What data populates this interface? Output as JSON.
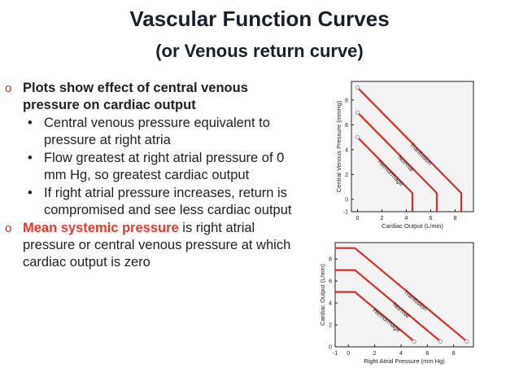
{
  "slide": {
    "title": "Vascular Function Curves",
    "subtitle": "(or Venous return curve)"
  },
  "bullets": {
    "b1": "Plots show effect of central venous pressure on cardiac output",
    "b1a": "Central venous pressure equivalent to pressure at right atria",
    "b1b": "Flow greatest at right atrial pressure of 0 mm Hg, so greatest cardiac output",
    "b1c": "If right atrial pressure increases, return is compromised and see less cardiac output",
    "b2_highlight": "Mean systemic pressure",
    "b2_rest": " is right atrial pressure or central venous pressure at which cardiac output is zero",
    "level1_marker": "o",
    "level2_marker": "•",
    "highlight_color": "#e53a2a"
  },
  "chart_data": [
    {
      "type": "line",
      "xlabel": "Cardiac Output (L/min)",
      "ylabel": "Central Venous Pressure (mmHg)",
      "xticks": [
        "0",
        "2",
        "4",
        "6",
        "8"
      ],
      "yticks": [
        "-1",
        "0",
        "2",
        "4",
        "6",
        "8"
      ],
      "xlim": [
        -0.5,
        9.5
      ],
      "ylim": [
        -1,
        9.5
      ],
      "series": [
        {
          "name": "Tranfusion",
          "points": [
            [
              0,
              9
            ],
            [
              8.5,
              0.5
            ],
            [
              8.5,
              -1
            ]
          ]
        },
        {
          "name": "Normal",
          "points": [
            [
              0,
              7
            ],
            [
              6.5,
              0.5
            ],
            [
              6.5,
              -1
            ]
          ]
        },
        {
          "name": "Hemorrhage",
          "points": [
            [
              0,
              5
            ],
            [
              4.5,
              0.5
            ],
            [
              4.5,
              -1
            ]
          ]
        }
      ]
    },
    {
      "type": "line",
      "xlabel": "Right Atrial Pressure (mm Hg)",
      "ylabel": "Cardiac Output (L/min)",
      "xticks": [
        "-1",
        "0",
        "2",
        "4",
        "6",
        "8"
      ],
      "yticks": [
        "0",
        "2",
        "4",
        "6",
        "8"
      ],
      "xlim": [
        -1,
        9.5
      ],
      "ylim": [
        0,
        9.5
      ],
      "series": [
        {
          "name": "Tranfusion",
          "points": [
            [
              -1,
              9
            ],
            [
              0.5,
              9
            ],
            [
              9,
              0.5
            ]
          ]
        },
        {
          "name": "Normal",
          "points": [
            [
              -1,
              7
            ],
            [
              0.5,
              7
            ],
            [
              7,
              0.5
            ]
          ]
        },
        {
          "name": "Hemorrhage",
          "points": [
            [
              -1,
              5
            ],
            [
              0.5,
              5
            ],
            [
              5,
              0.5
            ]
          ]
        }
      ]
    }
  ]
}
